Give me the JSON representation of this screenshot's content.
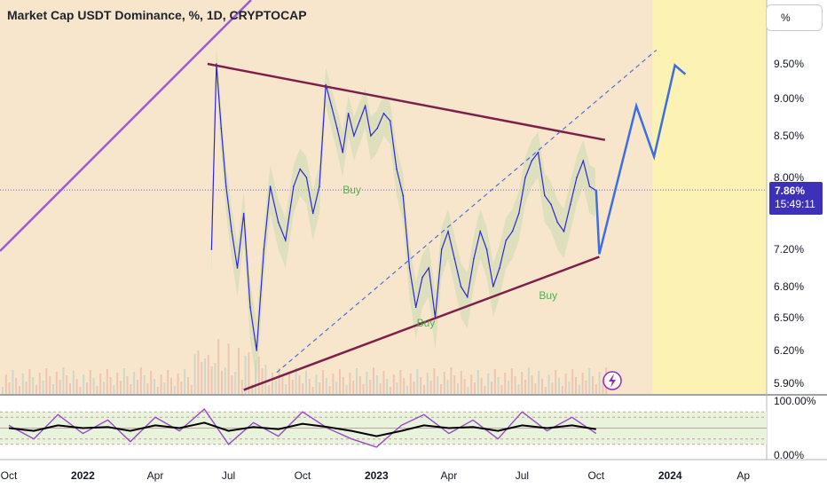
{
  "header": {
    "title": "Market Cap USDT Dominance, %, 1D, CRYPTOCAP",
    "unit_button": "%"
  },
  "price_badge": {
    "value": "7.86%",
    "countdown": "15:49:11"
  },
  "colors": {
    "plot_bg": "#f8e6cc",
    "future_bg": "#fbf2b4",
    "price_line": "#2c27d9",
    "triangle": "#7e1f4b",
    "channel": "#9a5bd6",
    "forecast": "#3b6fe0",
    "buy_signal": "#4caf50",
    "oscillator_k": "#9a49c9",
    "oscillator_d": "#000000",
    "cloud": "#c9d9b0"
  },
  "icons": {
    "replay": "lightning-icon"
  },
  "chart_data": [
    {
      "type": "line",
      "title": "Market Cap USDT Dominance, %, 1D, CRYPTOCAP",
      "unit": "%",
      "y_ticks": [
        "9.50%",
        "9.00%",
        "8.50%",
        "8.00%",
        "7.20%",
        "6.80%",
        "6.50%",
        "6.20%",
        "5.90%"
      ],
      "y_tick_values": [
        9.5,
        9.0,
        8.5,
        8.0,
        7.2,
        6.8,
        6.5,
        6.2,
        5.9
      ],
      "ylim": [
        5.85,
        9.9
      ],
      "x_ticks": [
        "Oct",
        "2022",
        "Apr",
        "Jul",
        "Oct",
        "2023",
        "Apr",
        "Jul",
        "Oct",
        "2024",
        "Ap"
      ],
      "x_tick_values": [
        "2021-10-01",
        "2022-01-01",
        "2022-04-01",
        "2022-07-01",
        "2022-10-01",
        "2023-01-01",
        "2023-04-01",
        "2023-07-01",
        "2023-10-01",
        "2024-01-01",
        "2024-04-01"
      ],
      "xlim": [
        "2021-09-20",
        "2024-04-30"
      ],
      "last_value": 7.86,
      "series": [
        {
          "x": [
            "2022-06-10",
            "2022-06-16",
            "2022-06-22",
            "2022-06-28",
            "2022-07-05",
            "2022-07-12",
            "2022-07-20",
            "2022-07-28",
            "2022-08-05",
            "2022-08-14",
            "2022-08-22",
            "2022-09-01",
            "2022-09-10",
            "2022-09-20",
            "2022-09-28",
            "2022-10-06",
            "2022-10-14",
            "2022-10-22",
            "2022-10-30",
            "2022-11-06",
            "2022-11-13",
            "2022-11-20",
            "2022-11-27",
            "2022-12-04",
            "2022-12-11",
            "2022-12-18",
            "2022-12-25",
            "2023-01-02",
            "2023-01-10",
            "2023-01-18",
            "2023-01-26",
            "2023-02-03",
            "2023-02-11",
            "2023-02-19",
            "2023-02-27",
            "2023-03-07",
            "2023-03-15",
            "2023-03-23",
            "2023-03-31",
            "2023-04-08",
            "2023-04-16",
            "2023-04-24",
            "2023-05-02",
            "2023-05-10",
            "2023-05-18",
            "2023-05-26",
            "2023-06-03",
            "2023-06-11",
            "2023-06-19",
            "2023-06-27",
            "2023-07-05",
            "2023-07-13",
            "2023-07-21",
            "2023-07-29",
            "2023-08-06",
            "2023-08-14",
            "2023-08-22",
            "2023-08-30",
            "2023-09-07",
            "2023-09-15",
            "2023-09-23",
            "2023-09-30"
          ],
          "values": [
            7.2,
            9.5,
            8.6,
            7.9,
            7.4,
            7.0,
            7.6,
            6.6,
            6.2,
            7.2,
            7.9,
            7.5,
            7.3,
            7.9,
            8.1,
            8.0,
            7.6,
            7.9,
            9.2,
            8.9,
            8.6,
            8.3,
            8.8,
            8.5,
            8.7,
            8.9,
            8.5,
            8.6,
            8.8,
            8.7,
            8.1,
            7.8,
            7.0,
            6.6,
            6.9,
            7.0,
            6.5,
            7.2,
            7.4,
            7.1,
            6.8,
            6.7,
            7.1,
            7.4,
            7.2,
            6.8,
            7.0,
            7.3,
            7.4,
            7.6,
            8.0,
            8.2,
            8.3,
            7.8,
            7.7,
            7.5,
            7.4,
            7.7,
            8.0,
            8.2,
            7.9,
            7.86
          ]
        }
      ],
      "overlays": [
        {
          "name": "",
          "type": "trendline",
          "x": [
            "2022-06-05",
            "2023-10-12"
          ],
          "values": [
            9.5,
            8.45
          ]
        },
        {
          "name": "",
          "type": "trendline",
          "x": [
            "2022-07-20",
            "2023-10-05"
          ],
          "values": [
            5.84,
            7.12
          ]
        },
        {
          "name": "",
          "type": "trendline",
          "x": [
            "2022-08-30",
            "2023-12-15"
          ],
          "values": [
            6.0,
            9.7
          ]
        },
        {
          "name": "",
          "type": "forecast",
          "x": [
            "2023-10-01",
            "2023-10-05",
            "2023-11-20",
            "2023-12-12",
            "2024-01-07",
            "2024-01-20"
          ],
          "values": [
            7.86,
            7.15,
            8.9,
            8.25,
            9.48,
            9.35
          ]
        }
      ],
      "annotations": [
        {
          "text": "Buy",
          "x": "2022-11-20",
          "y": 7.82
        },
        {
          "text": "Buy",
          "x": "2023-02-20",
          "y": 6.42
        },
        {
          "text": "Buy",
          "x": "2023-07-22",
          "y": 6.68
        }
      ],
      "grid": false,
      "legend": "none"
    },
    {
      "type": "line",
      "y_ticks": [
        "100.00%",
        "0.00%"
      ],
      "y_tick_values": [
        100,
        0
      ],
      "ylim": [
        0,
        100
      ],
      "series": [
        {
          "x": [
            "2021-10-01",
            "2021-11-01",
            "2021-12-01",
            "2022-01-01",
            "2022-02-01",
            "2022-03-01",
            "2022-04-01",
            "2022-05-01",
            "2022-06-01",
            "2022-07-01",
            "2022-08-01",
            "2022-09-01",
            "2022-10-01",
            "2022-11-01",
            "2022-12-01",
            "2023-01-01",
            "2023-02-01",
            "2023-03-01",
            "2023-04-01",
            "2023-05-01",
            "2023-06-01",
            "2023-07-01",
            "2023-08-01",
            "2023-09-01",
            "2023-10-01"
          ],
          "values": [
            55,
            30,
            75,
            40,
            65,
            25,
            70,
            45,
            85,
            20,
            60,
            35,
            80,
            50,
            30,
            15,
            55,
            75,
            40,
            65,
            30,
            80,
            45,
            70,
            40
          ]
        },
        {
          "x": [
            "2021-10-01",
            "2021-11-01",
            "2021-12-01",
            "2022-01-01",
            "2022-02-01",
            "2022-03-01",
            "2022-04-01",
            "2022-05-01",
            "2022-06-01",
            "2022-07-01",
            "2022-08-01",
            "2022-09-01",
            "2022-10-01",
            "2022-11-01",
            "2022-12-01",
            "2023-01-01",
            "2023-02-01",
            "2023-03-01",
            "2023-04-01",
            "2023-05-01",
            "2023-06-01",
            "2023-07-01",
            "2023-08-01",
            "2023-09-01",
            "2023-10-01"
          ],
          "values": [
            50,
            45,
            55,
            50,
            52,
            45,
            55,
            50,
            60,
            45,
            52,
            48,
            58,
            52,
            45,
            35,
            45,
            55,
            50,
            52,
            45,
            55,
            50,
            55,
            48
          ]
        }
      ],
      "bands": [
        80,
        70,
        50,
        30,
        20
      ]
    }
  ]
}
